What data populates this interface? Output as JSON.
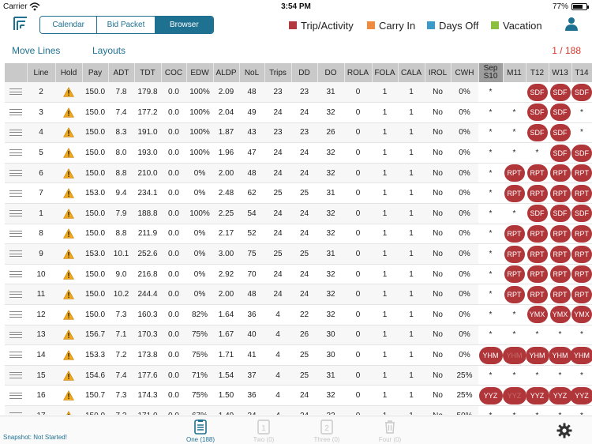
{
  "status_bar": {
    "carrier": "Carrier",
    "time": "3:54 PM",
    "battery": "77%",
    "battery_level": 0.77
  },
  "nav": {
    "tabs": [
      {
        "label": "Calendar",
        "active": false
      },
      {
        "label": "Bid Packet",
        "active": false
      },
      {
        "label": "Browser",
        "active": true
      }
    ],
    "legend": [
      {
        "label": "Trip/Activity",
        "color": "#b23a3e"
      },
      {
        "label": "Carry In",
        "color": "#f08a3c"
      },
      {
        "label": "Days Off",
        "color": "#3a9ac9"
      },
      {
        "label": "Vacation",
        "color": "#8cbf3f"
      }
    ]
  },
  "subnav": {
    "move_lines": "Move Lines",
    "layouts": "Layouts",
    "counter": "1 / 188"
  },
  "table": {
    "columns": [
      "Line",
      "Hold",
      "Pay",
      "ADT",
      "TDT",
      "COC",
      "EDW",
      "ALDP",
      "NoL",
      "Trips",
      "DD",
      "DO",
      "ROLA",
      "FOLA",
      "CALA",
      "IROL",
      "CWH"
    ],
    "date_columns": [
      {
        "top": "Sep",
        "bottom": "S10"
      },
      {
        "top": "",
        "bottom": "M11"
      },
      {
        "top": "",
        "bottom": "T12"
      },
      {
        "top": "",
        "bottom": "W13"
      },
      {
        "top": "",
        "bottom": "T14"
      }
    ],
    "rows": [
      {
        "cells": [
          "2",
          "",
          "150.0",
          "7.8",
          "179.8",
          "0.0",
          "100%",
          "2.09",
          "48",
          "23",
          "23",
          "31",
          "0",
          "1",
          "1",
          "No",
          "0%"
        ],
        "dates": [
          "*",
          "",
          "SDF",
          "SDF",
          "SDF"
        ]
      },
      {
        "cells": [
          "3",
          "",
          "150.0",
          "7.4",
          "177.2",
          "0.0",
          "100%",
          "2.04",
          "49",
          "24",
          "24",
          "32",
          "0",
          "1",
          "1",
          "No",
          "0%"
        ],
        "dates": [
          "*",
          "*",
          "SDF",
          "SDF",
          "*"
        ]
      },
      {
        "cells": [
          "4",
          "",
          "150.0",
          "8.3",
          "191.0",
          "0.0",
          "100%",
          "1.87",
          "43",
          "23",
          "23",
          "26",
          "0",
          "1",
          "1",
          "No",
          "0%"
        ],
        "dates": [
          "*",
          "*",
          "SDF",
          "SDF",
          "*"
        ]
      },
      {
        "cells": [
          "5",
          "",
          "150.0",
          "8.0",
          "193.0",
          "0.0",
          "100%",
          "1.96",
          "47",
          "24",
          "24",
          "32",
          "0",
          "1",
          "1",
          "No",
          "0%"
        ],
        "dates": [
          "*",
          "*",
          "*",
          "SDF",
          "SDF"
        ]
      },
      {
        "cells": [
          "6",
          "",
          "150.0",
          "8.8",
          "210.0",
          "0.0",
          "0%",
          "2.00",
          "48",
          "24",
          "24",
          "32",
          "0",
          "1",
          "1",
          "No",
          "0%"
        ],
        "dates": [
          "*",
          "RPT",
          "RPT",
          "RPT",
          "RPT"
        ]
      },
      {
        "cells": [
          "7",
          "",
          "153.0",
          "9.4",
          "234.1",
          "0.0",
          "0%",
          "2.48",
          "62",
          "25",
          "25",
          "31",
          "0",
          "1",
          "1",
          "No",
          "0%"
        ],
        "dates": [
          "*",
          "RPT",
          "RPT",
          "RPT",
          "RPT"
        ]
      },
      {
        "cells": [
          "1",
          "",
          "150.0",
          "7.9",
          "188.8",
          "0.0",
          "100%",
          "2.25",
          "54",
          "24",
          "24",
          "32",
          "0",
          "1",
          "1",
          "No",
          "0%"
        ],
        "dates": [
          "*",
          "*",
          "SDF",
          "SDF",
          "SDF"
        ]
      },
      {
        "cells": [
          "8",
          "",
          "150.0",
          "8.8",
          "211.9",
          "0.0",
          "0%",
          "2.17",
          "52",
          "24",
          "24",
          "32",
          "0",
          "1",
          "1",
          "No",
          "0%"
        ],
        "dates": [
          "*",
          "RPT",
          "RPT",
          "RPT",
          "RPT"
        ]
      },
      {
        "cells": [
          "9",
          "",
          "153.0",
          "10.1",
          "252.6",
          "0.0",
          "0%",
          "3.00",
          "75",
          "25",
          "25",
          "31",
          "0",
          "1",
          "1",
          "No",
          "0%"
        ],
        "dates": [
          "*",
          "RPT",
          "RPT",
          "RPT",
          "RPT"
        ]
      },
      {
        "cells": [
          "10",
          "",
          "150.0",
          "9.0",
          "216.8",
          "0.0",
          "0%",
          "2.92",
          "70",
          "24",
          "24",
          "32",
          "0",
          "1",
          "1",
          "No",
          "0%"
        ],
        "dates": [
          "*",
          "RPT",
          "RPT",
          "RPT",
          "RPT"
        ]
      },
      {
        "cells": [
          "11",
          "",
          "150.0",
          "10.2",
          "244.4",
          "0.0",
          "0%",
          "2.00",
          "48",
          "24",
          "24",
          "32",
          "0",
          "1",
          "1",
          "No",
          "0%"
        ],
        "dates": [
          "*",
          "RPT",
          "RPT",
          "RPT",
          "RPT"
        ]
      },
      {
        "cells": [
          "12",
          "",
          "150.0",
          "7.3",
          "160.3",
          "0.0",
          "82%",
          "1.64",
          "36",
          "4",
          "22",
          "32",
          "0",
          "1",
          "1",
          "No",
          "0%"
        ],
        "dates": [
          "*",
          "*",
          "YMX",
          "YMX",
          "YMX"
        ]
      },
      {
        "cells": [
          "13",
          "",
          "156.7",
          "7.1",
          "170.3",
          "0.0",
          "75%",
          "1.67",
          "40",
          "4",
          "26",
          "30",
          "0",
          "1",
          "1",
          "No",
          "0%"
        ],
        "dates": [
          "*",
          "*",
          "*",
          "*",
          "*"
        ]
      },
      {
        "cells": [
          "14",
          "",
          "153.3",
          "7.2",
          "173.8",
          "0.0",
          "75%",
          "1.71",
          "41",
          "4",
          "25",
          "30",
          "0",
          "1",
          "1",
          "No",
          "0%"
        ],
        "dates": [
          "YHM",
          "YHM",
          "YHM",
          "YHM",
          "YHM"
        ]
      },
      {
        "cells": [
          "15",
          "",
          "154.6",
          "7.4",
          "177.6",
          "0.0",
          "71%",
          "1.54",
          "37",
          "4",
          "25",
          "31",
          "0",
          "1",
          "1",
          "No",
          "25%"
        ],
        "dates": [
          "*",
          "*",
          "*",
          "*",
          "*"
        ]
      },
      {
        "cells": [
          "16",
          "",
          "150.7",
          "7.3",
          "174.3",
          "0.0",
          "75%",
          "1.50",
          "36",
          "4",
          "24",
          "32",
          "0",
          "1",
          "1",
          "No",
          "25%"
        ],
        "dates": [
          "YYZ",
          "YYZ",
          "YYZ",
          "YYZ",
          "YYZ"
        ]
      },
      {
        "cells": [
          "17",
          "",
          "150.0",
          "7.2",
          "171.0",
          "0.0",
          "67%",
          "1.49",
          "34",
          "4",
          "24",
          "32",
          "0",
          "1",
          "1",
          "No",
          "50%"
        ],
        "dates": [
          "*",
          "*",
          "*",
          "*",
          "*"
        ]
      }
    ]
  },
  "bottom": {
    "snapshot": "Snapshot: Not Started!",
    "tabs": [
      {
        "label": "One (188)",
        "icon": "list-icon",
        "active": true
      },
      {
        "label": "Two (0)",
        "icon": "page-1-icon",
        "active": false
      },
      {
        "label": "Three (0)",
        "icon": "page-2-icon",
        "active": false
      },
      {
        "label": "Four (0)",
        "icon": "trash-icon",
        "active": false
      }
    ]
  }
}
